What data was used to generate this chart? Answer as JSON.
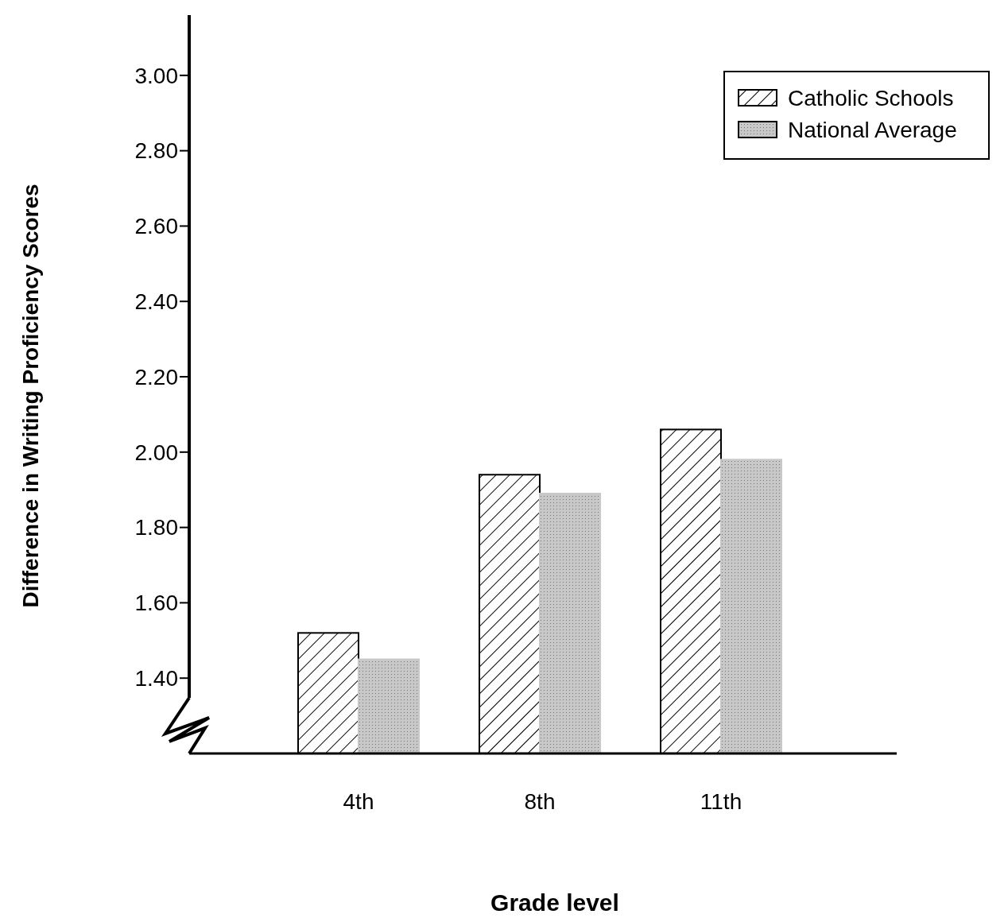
{
  "chart_data": {
    "type": "bar",
    "xlabel": "Grade level",
    "ylabel": "Difference in Writing Proficiency Scores",
    "categories": [
      "4th",
      "8th",
      "11th"
    ],
    "series": [
      {
        "name": "Catholic Schools",
        "color": "#000000",
        "values": [
          1.52,
          1.94,
          2.06
        ]
      },
      {
        "name": "National Average",
        "color": "#c8c8c8",
        "values": [
          1.45,
          1.89,
          1.98
        ]
      }
    ],
    "ylim": [
      1.2,
      3.16
    ],
    "yticks": [
      {
        "value": 1.4,
        "label": "1.40"
      },
      {
        "value": 1.6,
        "label": "1.60"
      },
      {
        "value": 1.8,
        "label": "1.80"
      },
      {
        "value": 2.0,
        "label": "2.00"
      },
      {
        "value": 2.2,
        "label": "2.20"
      },
      {
        "value": 2.4,
        "label": "2.40"
      },
      {
        "value": 2.6,
        "label": "2.60"
      },
      {
        "value": 2.8,
        "label": "2.80"
      },
      {
        "value": 3.0,
        "label": "3.00"
      }
    ],
    "legend": "top right",
    "grid": false
  }
}
